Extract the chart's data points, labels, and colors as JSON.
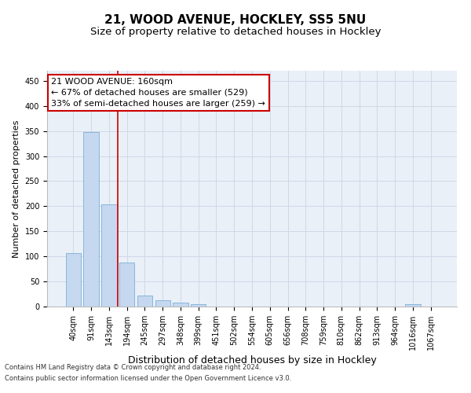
{
  "title1": "21, WOOD AVENUE, HOCKLEY, SS5 5NU",
  "title2": "Size of property relative to detached houses in Hockley",
  "xlabel": "Distribution of detached houses by size in Hockley",
  "ylabel": "Number of detached properties",
  "categories": [
    "40sqm",
    "91sqm",
    "143sqm",
    "194sqm",
    "245sqm",
    "297sqm",
    "348sqm",
    "399sqm",
    "451sqm",
    "502sqm",
    "554sqm",
    "605sqm",
    "656sqm",
    "708sqm",
    "759sqm",
    "810sqm",
    "862sqm",
    "913sqm",
    "964sqm",
    "1016sqm",
    "1067sqm"
  ],
  "values": [
    107,
    348,
    203,
    88,
    22,
    13,
    8,
    5,
    0,
    0,
    0,
    0,
    0,
    0,
    0,
    0,
    0,
    0,
    0,
    4,
    0
  ],
  "bar_color": "#c5d8f0",
  "bar_edge_color": "#7bafd4",
  "vline_x": 2.5,
  "vline_color": "#cc0000",
  "annotation_line1": "21 WOOD AVENUE: 160sqm",
  "annotation_line2": "← 67% of detached houses are smaller (529)",
  "annotation_line3": "33% of semi-detached houses are larger (259) →",
  "annotation_box_color": "#ffffff",
  "annotation_box_edge": "#cc0000",
  "ylim": [
    0,
    470
  ],
  "yticks": [
    0,
    50,
    100,
    150,
    200,
    250,
    300,
    350,
    400,
    450
  ],
  "title1_fontsize": 11,
  "title2_fontsize": 9.5,
  "xlabel_fontsize": 9,
  "ylabel_fontsize": 8,
  "annot_fontsize": 8,
  "tick_fontsize": 7,
  "footer1": "Contains HM Land Registry data © Crown copyright and database right 2024.",
  "footer2": "Contains public sector information licensed under the Open Government Licence v3.0.",
  "background_color": "#ffffff",
  "grid_color": "#d0d8e8",
  "plot_bg_color": "#eaf0f8"
}
